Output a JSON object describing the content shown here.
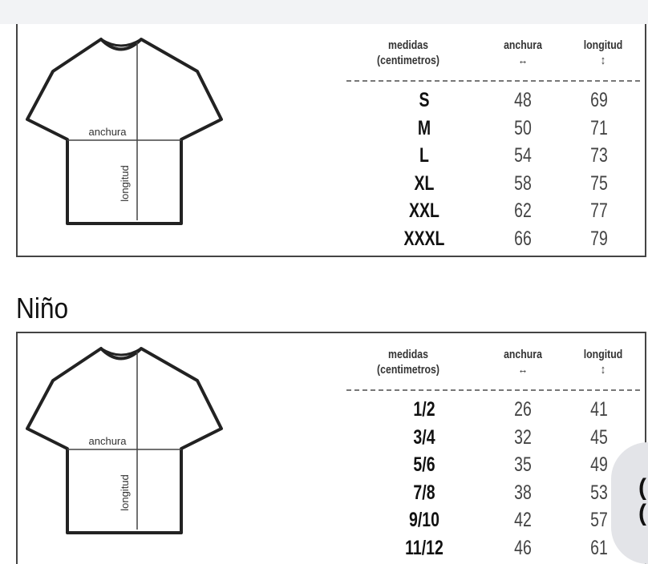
{
  "columns": {
    "sizes_line1": "medidas",
    "sizes_line2": "(centimetros)",
    "width": "anchura",
    "length": "longitud"
  },
  "diagram_labels": {
    "width": "anchura",
    "length": "longitud"
  },
  "adult": {
    "rows": [
      {
        "size": "S",
        "anchura": "48",
        "longitud": "69"
      },
      {
        "size": "M",
        "anchura": "50",
        "longitud": "71"
      },
      {
        "size": "L",
        "anchura": "54",
        "longitud": "73"
      },
      {
        "size": "XL",
        "anchura": "58",
        "longitud": "75"
      },
      {
        "size": "XXL",
        "anchura": "62",
        "longitud": "77"
      },
      {
        "size": "XXXL",
        "anchura": "66",
        "longitud": "79"
      }
    ]
  },
  "kids": {
    "title": "Niño",
    "rows": [
      {
        "size": "1/2",
        "anchura": "26",
        "longitud": "41"
      },
      {
        "size": "3/4",
        "anchura": "32",
        "longitud": "45"
      },
      {
        "size": "5/6",
        "anchura": "35",
        "longitud": "49"
      },
      {
        "size": "7/8",
        "anchura": "38",
        "longitud": "53"
      },
      {
        "size": "9/10",
        "anchura": "42",
        "longitud": "57"
      },
      {
        "size": "11/12",
        "anchura": "46",
        "longitud": "61"
      }
    ]
  }
}
